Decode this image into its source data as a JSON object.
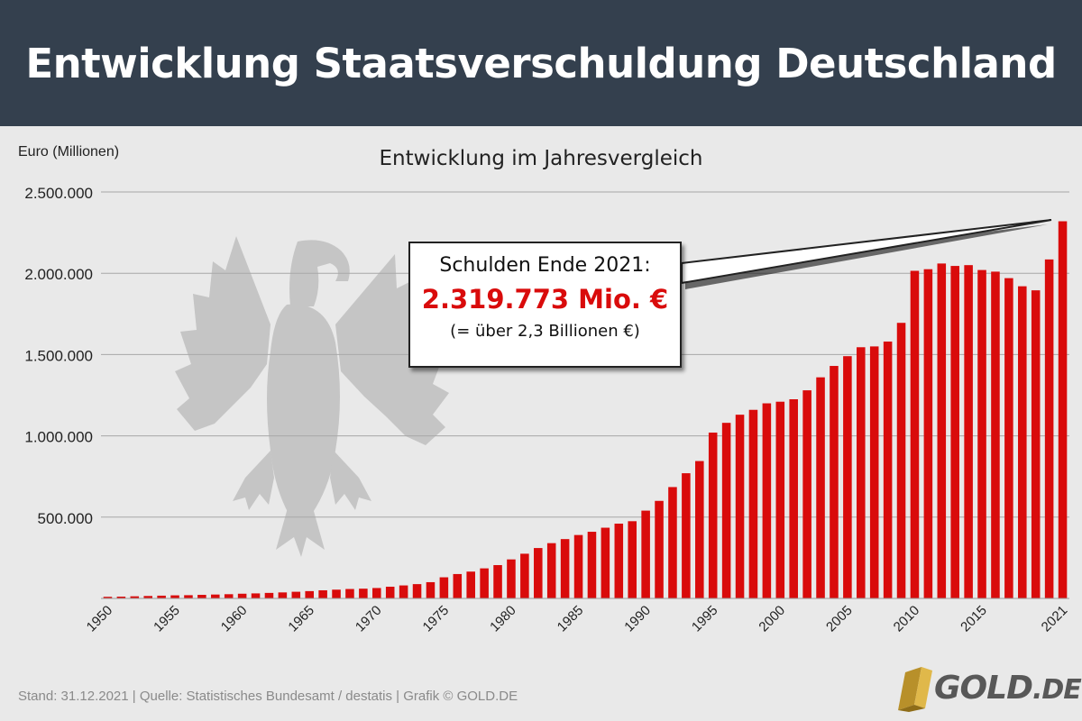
{
  "header": {
    "title": "Entwicklung Staatsverschuldung Deutschland"
  },
  "chart_data": {
    "type": "bar",
    "title": "Entwicklung im Jahresvergleich",
    "ylabel": "Euro (Millionen)",
    "xlabel": "",
    "ylim": [
      0,
      2500000
    ],
    "yticks": [
      500000,
      1000000,
      1500000,
      2000000,
      2500000
    ],
    "ytick_labels": [
      "500.000",
      "1.000.000",
      "1.500.000",
      "2.000.000",
      "2.500.000"
    ],
    "xtick_labels": [
      "1950",
      "1955",
      "1960",
      "1965",
      "1970",
      "1975",
      "1980",
      "1985",
      "1990",
      "1995",
      "2000",
      "2005",
      "2010",
      "2015",
      "2021"
    ],
    "grid": true,
    "bar_color": "#d90b0b",
    "categories": [
      1950,
      1951,
      1952,
      1953,
      1954,
      1955,
      1956,
      1957,
      1958,
      1959,
      1960,
      1961,
      1962,
      1963,
      1964,
      1965,
      1966,
      1967,
      1968,
      1969,
      1970,
      1971,
      1972,
      1973,
      1974,
      1975,
      1976,
      1977,
      1978,
      1979,
      1980,
      1981,
      1982,
      1983,
      1984,
      1985,
      1986,
      1987,
      1988,
      1989,
      1990,
      1991,
      1992,
      1993,
      1994,
      1995,
      1996,
      1997,
      1998,
      1999,
      2000,
      2001,
      2002,
      2003,
      2004,
      2005,
      2006,
      2007,
      2008,
      2009,
      2010,
      2011,
      2012,
      2013,
      2014,
      2015,
      2016,
      2017,
      2018,
      2019,
      2020,
      2021
    ],
    "values": [
      10000,
      11000,
      13000,
      15000,
      17000,
      19000,
      20000,
      22000,
      24000,
      26000,
      29000,
      31000,
      34000,
      37000,
      41000,
      45000,
      50000,
      54000,
      58000,
      60000,
      64000,
      72000,
      80000,
      88000,
      100000,
      130000,
      150000,
      165000,
      185000,
      205000,
      240000,
      275000,
      310000,
      340000,
      365000,
      390000,
      410000,
      435000,
      460000,
      475000,
      540000,
      600000,
      685000,
      770000,
      845000,
      1020000,
      1080000,
      1130000,
      1160000,
      1200000,
      1210000,
      1225000,
      1280000,
      1360000,
      1430000,
      1490000,
      1545000,
      1550000,
      1580000,
      1695000,
      2015000,
      2025000,
      2060000,
      2045000,
      2050000,
      2020000,
      2010000,
      1970000,
      1920000,
      1895000,
      2085000,
      2319773
    ],
    "annotation": {
      "line1": "Schulden Ende 2021:",
      "line2": "2.319.773 Mio. €",
      "line3": "(= über 2,3 Billionen €)"
    }
  },
  "footer": {
    "text": "Stand: 31.12.2021  |  Quelle: Statistisches Bundesamt / destatis  |  Grafik © GOLD.DE"
  },
  "logo": {
    "name": "GOLD",
    "tld": ".DE",
    "icon": "gold-bars-icon"
  },
  "watermark": {
    "icon": "federal-eagle-icon"
  }
}
